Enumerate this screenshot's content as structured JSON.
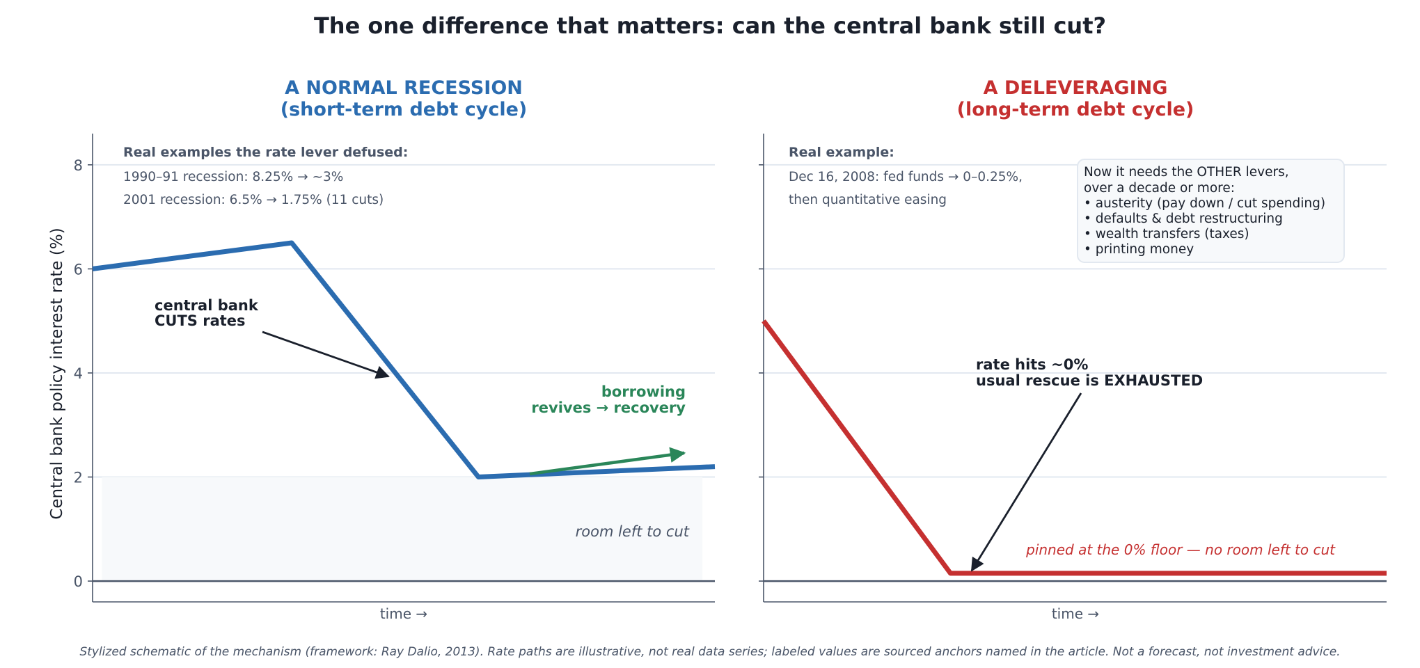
{
  "title": "The one difference that matters: can the central bank still cut?",
  "ylabel": "Central bank policy interest rate (%)",
  "footnote": "Stylized schematic of the mechanism (framework: Ray Dalio, 2013). Rate paths are illustrative, not real data series; labeled values are sourced anchors named in the article. Not a forecast, not investment advice.",
  "colors": {
    "normal": "#2b6cb0",
    "delev": "#c53030",
    "recovery": "#2a8659",
    "text": "#1a202c",
    "muted": "#4a5568"
  },
  "left_panel": {
    "title_line1": "A NORMAL RECESSION",
    "title_line2": "(short-term debt cycle)",
    "xlabel": "time  →",
    "examples_header": "Real examples the rate lever defused:",
    "examples": [
      "1990–91 recession: 8.25% → ~3%",
      "2001 recession: 6.5% → 1.75% (11 cuts)"
    ],
    "cut_annotation": [
      "central bank",
      "CUTS rates"
    ],
    "recovery_annotation": [
      "borrowing",
      "revives → recovery"
    ],
    "room_label": "room left to cut"
  },
  "right_panel": {
    "title_line1": "A DELEVERAGING",
    "title_line2": "(long-term debt cycle)",
    "xlabel": "time  →",
    "examples_header": "Real example:",
    "examples": [
      "Dec 16, 2008: fed funds → 0–0.25%,",
      "then quantitative easing"
    ],
    "exhausted_annotation": [
      "rate hits ~0%",
      "usual rescue is EXHAUSTED"
    ],
    "floor_label": "pinned at the 0% floor — no room left to cut",
    "levers_box": [
      "Now it needs the OTHER levers,",
      "over a decade or more:",
      "• austerity (pay down / cut spending)",
      "• defaults & debt restructuring",
      "• wealth transfers (taxes)",
      "• printing money"
    ]
  },
  "chart_data": [
    {
      "type": "line",
      "title": "A NORMAL RECESSION (short-term debt cycle)",
      "xlabel": "time  →",
      "ylabel": "Central bank policy interest rate (%)",
      "ylim": [
        -0.4,
        8.6
      ],
      "yticks": [
        0,
        2,
        4,
        6,
        8
      ],
      "grid": true,
      "series": [
        {
          "x": [
            0,
            3.2,
            6.2,
            10
          ],
          "y": [
            6.0,
            6.5,
            2.0,
            2.2
          ]
        }
      ],
      "shaded_region": {
        "x": [
          0.15,
          9.8
        ],
        "y": [
          0,
          2
        ]
      }
    },
    {
      "type": "line",
      "title": "A DELEVERAGING (long-term debt cycle)",
      "xlabel": "time  →",
      "ylim": [
        -0.4,
        8.6
      ],
      "yticks": [
        0,
        2,
        4,
        6,
        8
      ],
      "grid": true,
      "series": [
        {
          "x": [
            0,
            3,
            10
          ],
          "y": [
            5.0,
            0.15,
            0.15
          ]
        }
      ]
    }
  ]
}
